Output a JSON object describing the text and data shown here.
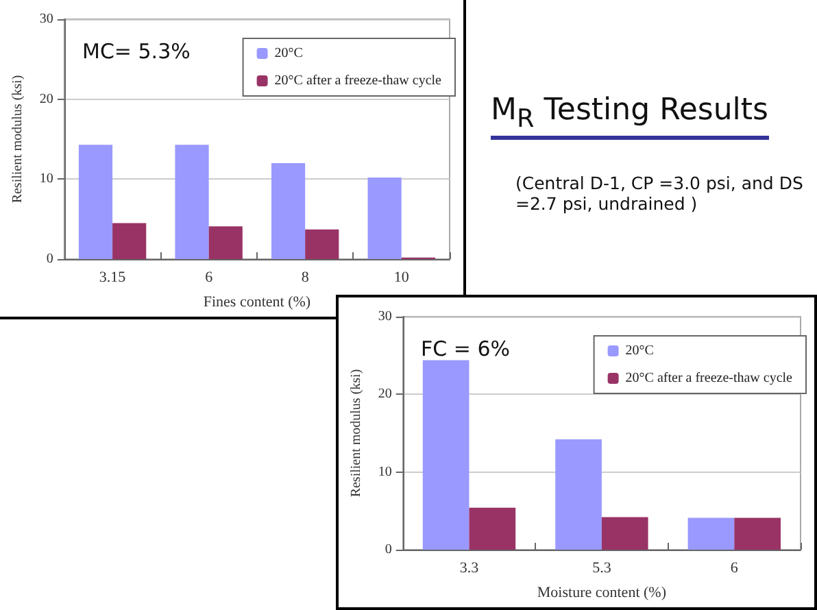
{
  "chart_data": [
    {
      "type": "bar",
      "annotations": [
        "MC= 5.3%"
      ],
      "xlabel": "Fines content (%)",
      "ylabel": "Resilient modulus (ksi)",
      "categories": [
        "3.15",
        "6",
        "8",
        "10"
      ],
      "series": [
        {
          "name": "20°C",
          "color": "#9999ff",
          "values": [
            14.3,
            14.3,
            12.0,
            10.2
          ]
        },
        {
          "name": "20°C after a freeze-thaw cycle",
          "color": "#993366",
          "values": [
            4.5,
            4.1,
            3.7,
            0.2
          ]
        }
      ],
      "ylim": [
        0,
        30
      ],
      "yticks": [
        0,
        10,
        20,
        30
      ],
      "grid": "y",
      "legend": "top right"
    },
    {
      "type": "other",
      "title": "M$_{R}$ Testing Results",
      "subtitle": "(Central D-1, CP =3.0 psi, and DS =2.7 psi, undrained )"
    },
    {
      "type": "bar",
      "annotations": [
        "FC = 6%"
      ],
      "xlabel": "Moisture content (%)",
      "ylabel": "Resilient modulus (ksi)",
      "categories": [
        "3.3",
        "5.3",
        "6"
      ],
      "series": [
        {
          "name": "20°C",
          "color": "#9999ff",
          "values": [
            24.4,
            14.2,
            4.1
          ]
        },
        {
          "name": "20°C after a freeze-thaw cycle",
          "color": "#993366",
          "values": [
            5.4,
            4.2,
            4.1
          ]
        }
      ],
      "ylim": [
        0,
        30
      ],
      "yticks": [
        0,
        10,
        20,
        30
      ],
      "grid": "y",
      "legend": "top right"
    }
  ]
}
